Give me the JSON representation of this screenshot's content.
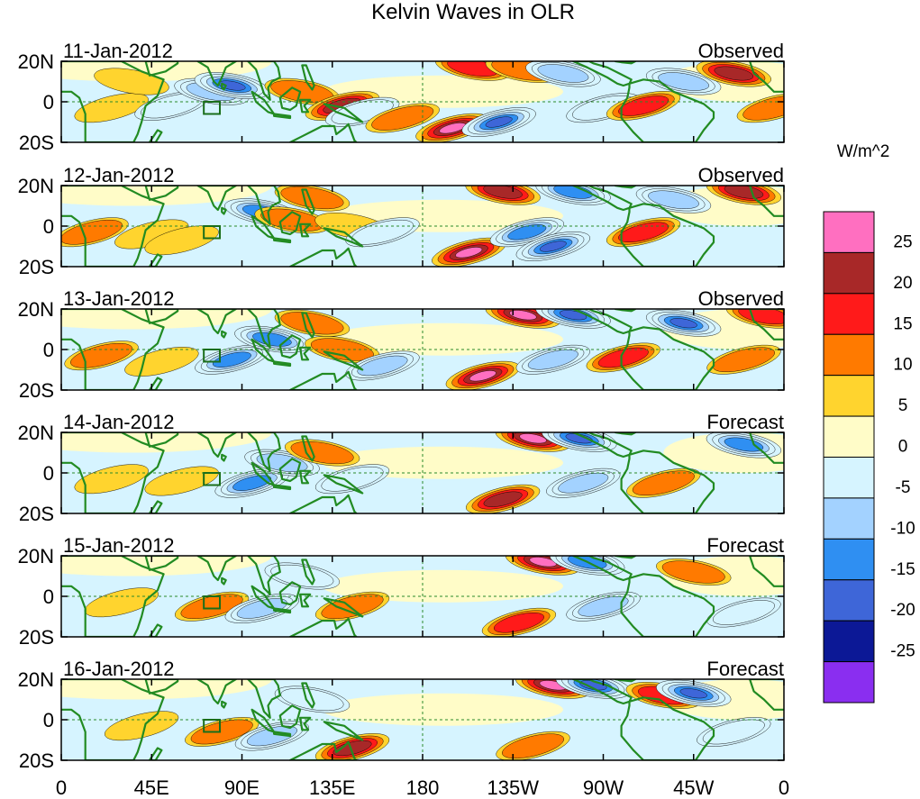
{
  "chart_data": {
    "type": "heatmap",
    "title": "Kelvin Waves in OLR",
    "variable": "OLR anomaly",
    "units": "W/m^2",
    "x_tick_labels": [
      "0",
      "45E",
      "90E",
      "135E",
      "180",
      "135W",
      "90W",
      "45W",
      "0"
    ],
    "x_range_deg_east": [
      0,
      360
    ],
    "y_tick_labels": [
      "20N",
      "0",
      "20S"
    ],
    "y_range_deg": [
      -20,
      20
    ],
    "colorbar": {
      "tick_labels": [
        "25",
        "20",
        "15",
        "10",
        "5",
        "0",
        "-5",
        "-10",
        "-15",
        "-20",
        "-25"
      ],
      "levels_high_to_low": [
        25,
        20,
        15,
        10,
        5,
        0,
        -5,
        -10,
        -15,
        -20,
        -25
      ],
      "colors_top_to_bottom": [
        "#ff6fc0",
        "#a82828",
        "#ff1a1a",
        "#ff7a00",
        "#ffd42e",
        "#fffcc8",
        "#d6f4ff",
        "#a3d2ff",
        "#2f8ff2",
        "#3e66d8",
        "#0c1896",
        "#8a2ef0"
      ]
    },
    "panels": [
      {
        "date": "11-Jan-2012",
        "kind": "Observed",
        "features": [
          {
            "lon": 25,
            "lat": -3,
            "value": 8
          },
          {
            "lon": 35,
            "lat": 10,
            "value": 5
          },
          {
            "lon": 55,
            "lat": -2,
            "value": -9
          },
          {
            "lon": 75,
            "lat": 5,
            "value": -12
          },
          {
            "lon": 85,
            "lat": 8,
            "value": -22
          },
          {
            "lon": 120,
            "lat": 5,
            "value": 12
          },
          {
            "lon": 140,
            "lat": -2,
            "value": 22
          },
          {
            "lon": 150,
            "lat": -5,
            "value": -10
          },
          {
            "lon": 170,
            "lat": -8,
            "value": 10
          },
          {
            "lon": 195,
            "lat": -13,
            "value": 27
          },
          {
            "lon": 218,
            "lat": -10,
            "value": -24
          },
          {
            "lon": 205,
            "lat": 17,
            "value": 18
          },
          {
            "lon": 230,
            "lat": 16,
            "value": 12
          },
          {
            "lon": 250,
            "lat": 14,
            "value": -15
          },
          {
            "lon": 270,
            "lat": -3,
            "value": -8
          },
          {
            "lon": 290,
            "lat": -2,
            "value": 18
          },
          {
            "lon": 310,
            "lat": 10,
            "value": -12
          },
          {
            "lon": 335,
            "lat": 14,
            "value": 20
          },
          {
            "lon": 355,
            "lat": -3,
            "value": 12
          }
        ]
      },
      {
        "date": "12-Jan-2012",
        "kind": "Observed",
        "features": [
          {
            "lon": 15,
            "lat": -3,
            "value": 10
          },
          {
            "lon": 45,
            "lat": -4,
            "value": 9
          },
          {
            "lon": 60,
            "lat": -7,
            "value": 6
          },
          {
            "lon": 100,
            "lat": 7,
            "value": -18
          },
          {
            "lon": 115,
            "lat": 3,
            "value": 10
          },
          {
            "lon": 125,
            "lat": 14,
            "value": 12
          },
          {
            "lon": 145,
            "lat": 0,
            "value": 9
          },
          {
            "lon": 160,
            "lat": -3,
            "value": -10
          },
          {
            "lon": 203,
            "lat": -13,
            "value": 27
          },
          {
            "lon": 220,
            "lat": 17,
            "value": 20
          },
          {
            "lon": 232,
            "lat": -3,
            "value": -16
          },
          {
            "lon": 245,
            "lat": -10,
            "value": -22
          },
          {
            "lon": 255,
            "lat": 17,
            "value": -20
          },
          {
            "lon": 290,
            "lat": -3,
            "value": 16
          },
          {
            "lon": 305,
            "lat": 13,
            "value": -12
          },
          {
            "lon": 340,
            "lat": 17,
            "value": 20
          }
        ]
      },
      {
        "date": "13-Jan-2012",
        "kind": "Observed",
        "features": [
          {
            "lon": 20,
            "lat": -3,
            "value": 11
          },
          {
            "lon": 50,
            "lat": -6,
            "value": 8
          },
          {
            "lon": 85,
            "lat": -5,
            "value": -16
          },
          {
            "lon": 105,
            "lat": 5,
            "value": -18
          },
          {
            "lon": 125,
            "lat": 13,
            "value": 14
          },
          {
            "lon": 140,
            "lat": 0,
            "value": 12
          },
          {
            "lon": 160,
            "lat": -8,
            "value": -12
          },
          {
            "lon": 210,
            "lat": -13,
            "value": 27
          },
          {
            "lon": 230,
            "lat": 17,
            "value": 28
          },
          {
            "lon": 255,
            "lat": 17,
            "value": -24
          },
          {
            "lon": 245,
            "lat": -5,
            "value": -14
          },
          {
            "lon": 280,
            "lat": -4,
            "value": 16
          },
          {
            "lon": 310,
            "lat": 13,
            "value": -22
          },
          {
            "lon": 350,
            "lat": 17,
            "value": 18
          },
          {
            "lon": 340,
            "lat": -5,
            "value": 12
          }
        ]
      },
      {
        "date": "14-Jan-2012",
        "kind": "Forecast",
        "features": [
          {
            "lon": 25,
            "lat": -3,
            "value": 8
          },
          {
            "lon": 60,
            "lat": -4,
            "value": 7
          },
          {
            "lon": 95,
            "lat": -5,
            "value": -18
          },
          {
            "lon": 110,
            "lat": 5,
            "value": -12
          },
          {
            "lon": 130,
            "lat": 10,
            "value": 10
          },
          {
            "lon": 145,
            "lat": -3,
            "value": -10
          },
          {
            "lon": 220,
            "lat": -13,
            "value": 22
          },
          {
            "lon": 235,
            "lat": 17,
            "value": 27
          },
          {
            "lon": 258,
            "lat": 17,
            "value": -22
          },
          {
            "lon": 260,
            "lat": -5,
            "value": -13
          },
          {
            "lon": 300,
            "lat": -5,
            "value": 12
          },
          {
            "lon": 340,
            "lat": 14,
            "value": -20
          }
        ]
      },
      {
        "date": "15-Jan-2012",
        "kind": "Forecast",
        "features": [
          {
            "lon": 30,
            "lat": -3,
            "value": 7
          },
          {
            "lon": 75,
            "lat": -5,
            "value": 10
          },
          {
            "lon": 100,
            "lat": -6,
            "value": -14
          },
          {
            "lon": 120,
            "lat": 10,
            "value": -10
          },
          {
            "lon": 145,
            "lat": -5,
            "value": 12
          },
          {
            "lon": 228,
            "lat": -13,
            "value": 18
          },
          {
            "lon": 240,
            "lat": 17,
            "value": 27
          },
          {
            "lon": 262,
            "lat": 17,
            "value": -20
          },
          {
            "lon": 270,
            "lat": -5,
            "value": -12
          },
          {
            "lon": 315,
            "lat": 12,
            "value": 14
          },
          {
            "lon": 340,
            "lat": -8,
            "value": -10
          }
        ]
      },
      {
        "date": "16-Jan-2012",
        "kind": "Forecast",
        "features": [
          {
            "lon": 40,
            "lat": -3,
            "value": 8
          },
          {
            "lon": 80,
            "lat": -6,
            "value": 12
          },
          {
            "lon": 105,
            "lat": -8,
            "value": -12
          },
          {
            "lon": 125,
            "lat": 10,
            "value": -10
          },
          {
            "lon": 145,
            "lat": -14,
            "value": 22
          },
          {
            "lon": 235,
            "lat": -13,
            "value": 14
          },
          {
            "lon": 245,
            "lat": 17,
            "value": 25
          },
          {
            "lon": 265,
            "lat": 17,
            "value": -22
          },
          {
            "lon": 300,
            "lat": 12,
            "value": 18
          },
          {
            "lon": 315,
            "lat": 13,
            "value": -22
          },
          {
            "lon": 335,
            "lat": -6,
            "value": -10
          }
        ]
      }
    ]
  }
}
